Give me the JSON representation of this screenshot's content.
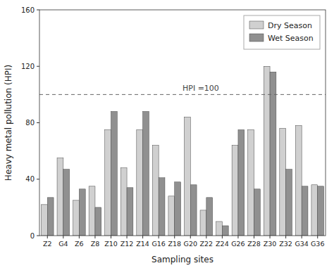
{
  "chart_data": {
    "type": "bar",
    "categories": [
      "Z2",
      "G4",
      "Z6",
      "Z8",
      "Z10",
      "Z12",
      "Z14",
      "G16",
      "Z18",
      "G20",
      "Z22",
      "Z24",
      "G26",
      "Z28",
      "Z30",
      "Z32",
      "G34",
      "G36"
    ],
    "series": [
      {
        "name": "Dry Season",
        "color": "#d0d0d0",
        "values": [
          22,
          55,
          25,
          35,
          75,
          48,
          75,
          64,
          28,
          84,
          18,
          10,
          64,
          75,
          120,
          76,
          78,
          36
        ]
      },
      {
        "name": "Wet Season",
        "color": "#909090",
        "values": [
          27,
          47,
          33,
          20,
          88,
          34,
          88,
          41,
          38,
          36,
          27,
          7,
          75,
          33,
          116,
          47,
          35,
          35
        ]
      }
    ],
    "ylim": [
      0,
      160
    ],
    "yticks": [
      0,
      40,
      80,
      120,
      160
    ],
    "x_label": "Sampling sites",
    "y_label": "Heavy metal pollution (HPI)",
    "annotations": [
      {
        "text": "HPI =100",
        "y": 100
      }
    ],
    "legend": "upper right",
    "grid": false
  }
}
